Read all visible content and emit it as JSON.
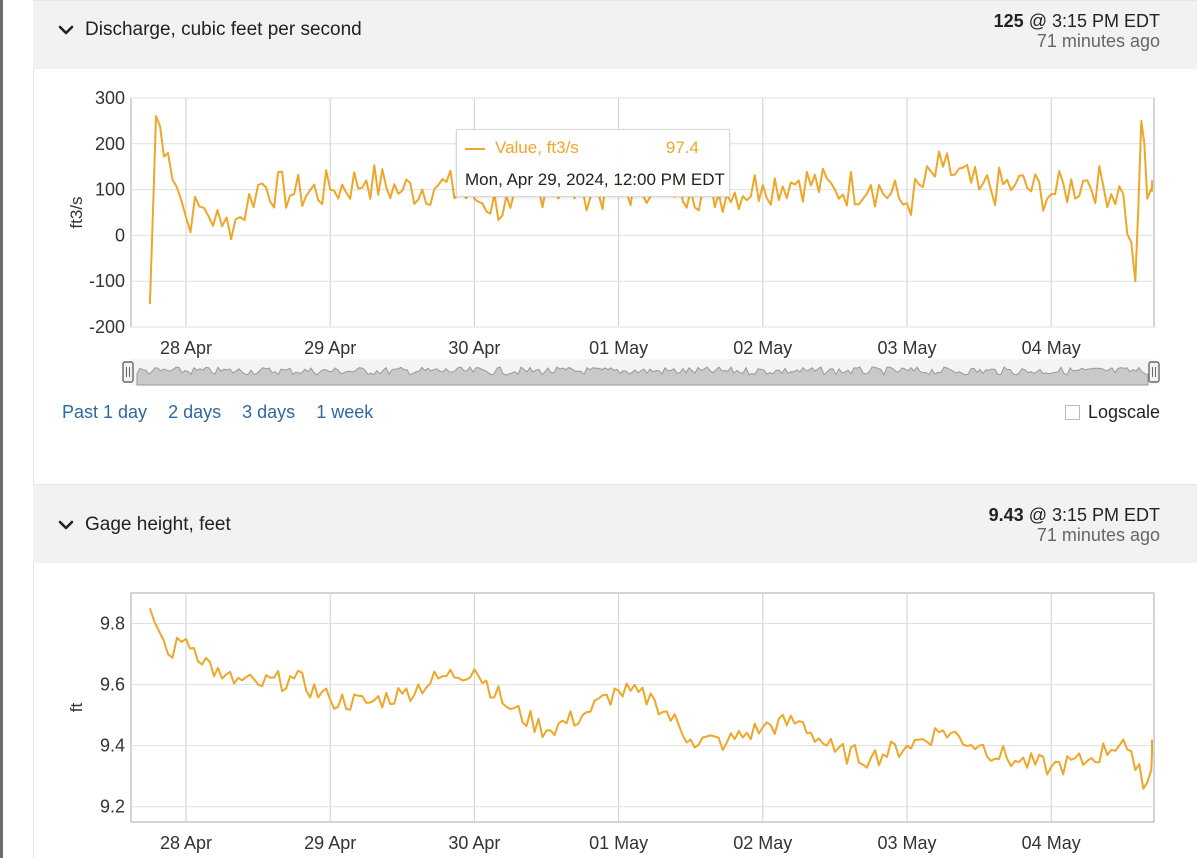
{
  "discharge": {
    "title": "Discharge, cubic feet per second",
    "latest_value": "125",
    "latest_time": "@ 3:15 PM EDT",
    "latest_ago": "71 minutes ago",
    "tooltip": {
      "series": "Value, ft3/s",
      "value": "97.4",
      "date": "Mon, Apr 29, 2024, 12:00 PM EDT"
    },
    "range_links": [
      "Past 1 day",
      "2 days",
      "3 days",
      "1 week"
    ],
    "logscale_label": "Logscale"
  },
  "gage": {
    "title": "Gage height, feet",
    "latest_value": "9.43",
    "latest_time": "@ 3:15 PM EDT",
    "latest_ago": "71 minutes ago"
  },
  "colors": {
    "series": "#eea729",
    "link": "#2d6a9f",
    "header_bg": "#f2f2f2"
  },
  "icons": {
    "collapse": "chevron-down-icon",
    "navigator_handle": "drag-handle-icon"
  },
  "chart_data": [
    {
      "type": "line",
      "ylabel": "ft3/s",
      "ylim": [
        -200,
        300
      ],
      "yticks": [
        300,
        200,
        100,
        0,
        -100,
        -200
      ],
      "xticks": [
        "28 Apr",
        "29 Apr",
        "30 Apr",
        "01 May",
        "02 May",
        "03 May",
        "04 May"
      ],
      "grid": true,
      "series": [
        {
          "name": "Value, ft3/s",
          "x": [
            "2024-04-27 18:00",
            "2024-04-27 19:00",
            "2024-04-27 21:00",
            "2024-04-28 00:00",
            "2024-04-28 03:00",
            "2024-04-28 06:00",
            "2024-04-28 09:00",
            "2024-04-28 12:00",
            "2024-04-28 18:00",
            "2024-04-29 00:00",
            "2024-04-29 06:00",
            "2024-04-29 12:00",
            "2024-04-29 18:00",
            "2024-04-30 00:00",
            "2024-04-30 06:00",
            "2024-04-30 12:00",
            "2024-04-30 18:00",
            "2024-05-01 00:00",
            "2024-05-01 06:00",
            "2024-05-01 12:00",
            "2024-05-01 18:00",
            "2024-05-02 00:00",
            "2024-05-02 06:00",
            "2024-05-02 12:00",
            "2024-05-02 18:00",
            "2024-05-03 00:00",
            "2024-05-03 06:00",
            "2024-05-03 12:00",
            "2024-05-03 18:00",
            "2024-05-04 00:00",
            "2024-05-04 06:00",
            "2024-05-04 12:00",
            "2024-05-04 14:00",
            "2024-05-04 15:00",
            "2024-05-04 16:00",
            "2024-05-04 18:00"
          ],
          "y": [
            -150,
            260,
            180,
            40,
            60,
            20,
            40,
            110,
            90,
            100,
            120,
            97.4,
            110,
            80,
            60,
            110,
            100,
            90,
            120,
            100,
            90,
            110,
            120,
            100,
            110,
            70,
            150,
            100,
            110,
            90,
            120,
            90,
            -100,
            250,
            80,
            120
          ]
        }
      ]
    },
    {
      "type": "line",
      "ylabel": "ft",
      "ylim": [
        9.15,
        9.9
      ],
      "yticks": [
        9.8,
        9.6,
        9.4,
        9.2
      ],
      "xticks": [
        "28 Apr",
        "29 Apr",
        "30 Apr",
        "01 May",
        "02 May",
        "03 May",
        "04 May"
      ],
      "grid": true,
      "series": [
        {
          "name": "Gage height, ft",
          "x": [
            "2024-04-27 18:00",
            "2024-04-27 21:00",
            "2024-04-28 00:00",
            "2024-04-28 06:00",
            "2024-04-28 12:00",
            "2024-04-28 18:00",
            "2024-04-29 00:00",
            "2024-04-29 06:00",
            "2024-04-29 12:00",
            "2024-04-29 18:00",
            "2024-04-30 00:00",
            "2024-04-30 06:00",
            "2024-04-30 12:00",
            "2024-04-30 18:00",
            "2024-05-01 00:00",
            "2024-05-01 06:00",
            "2024-05-01 12:00",
            "2024-05-01 18:00",
            "2024-05-02 00:00",
            "2024-05-02 06:00",
            "2024-05-02 12:00",
            "2024-05-02 18:00",
            "2024-05-03 00:00",
            "2024-05-03 06:00",
            "2024-05-03 12:00",
            "2024-05-03 18:00",
            "2024-05-04 00:00",
            "2024-05-04 06:00",
            "2024-05-04 12:00",
            "2024-05-04 14:00",
            "2024-05-04 16:00",
            "2024-05-04 18:00"
          ],
          "y": [
            9.85,
            9.7,
            9.75,
            9.62,
            9.6,
            9.62,
            9.55,
            9.54,
            9.57,
            9.62,
            9.65,
            9.52,
            9.45,
            9.5,
            9.58,
            9.55,
            9.42,
            9.41,
            9.46,
            9.48,
            9.38,
            9.36,
            9.4,
            9.45,
            9.4,
            9.35,
            9.33,
            9.35,
            9.42,
            9.32,
            9.28,
            9.42
          ]
        }
      ]
    }
  ]
}
